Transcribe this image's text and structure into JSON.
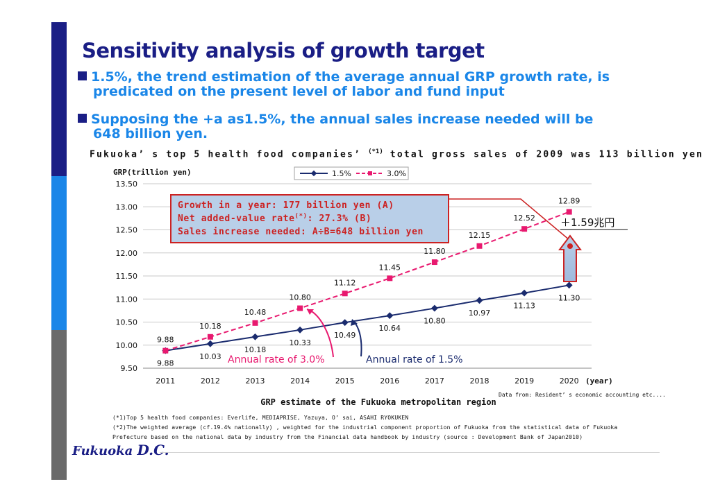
{
  "title": "Sensitivity analysis of growth target",
  "bullets": [
    {
      "line1": "1.5%, the trend estimation of the average annual GRP growth rate, is",
      "line2": "predicated on the present level of labor and fund input"
    },
    {
      "line1": "Supposing the +a as1.5%, the annual sales increase needed will be",
      "line2": "648 billion yen."
    }
  ],
  "subhead": {
    "text": "Fukuoka’ s top 5 health food companies’ ",
    "sup": "(*1)",
    "text2": " total gross sales of 2009 was 113 billion yen"
  },
  "annotation_box": {
    "line1": "Growth in a year: 177 billion yen (A)",
    "line2a": "Net added-value rate",
    "line2sup": "(*)",
    "line2b": ": 27.3% (B)",
    "line3": "Sales increase needed: A÷B=648 billion yen"
  },
  "increase_label": "＋1.59兆円",
  "rate_labels": {
    "pink": "Annual rate of 3.0%",
    "navy": "Annual rate of 1.5%"
  },
  "data_source": "Data from: Resident’ s economic accounting etc....",
  "footnotes": [
    "(*1)Top 5 health food companies: Everlife, MEDIAPRISE, Yazuya, O’ sai, ASAHI RYOKUKEN",
    "(*2)The weighted average (cf.19.4% nationally) , weighted for the industrial component proportion of Fukuoka from the statistical data of Fukuoka",
    "Prefecture based on the national data by industry from the Financial data handbook by industry (source : Development Bank of Japan2010)"
  ],
  "logo": {
    "main": "Fukuoka ",
    "dc": "D.C."
  },
  "colors": {
    "navy": "#1a2b6e",
    "pink": "#e8196f",
    "title": "#1a1e85",
    "bullet": "#1a86e8",
    "box_fill": "#b9cfe8",
    "box_border": "#cc2222"
  },
  "chart_data": {
    "type": "line",
    "title": "GRP estimate of the Fukuoka metropolitan region",
    "xlabel": "(year)",
    "ylabel": "GRP(trillion yen)",
    "categories": [
      "2011",
      "2012",
      "2013",
      "2014",
      "2015",
      "2016",
      "2017",
      "2018",
      "2019",
      "2020"
    ],
    "ylim": [
      9.5,
      13.5
    ],
    "yticks": [
      "9.50",
      "10.00",
      "10.50",
      "11.00",
      "11.50",
      "12.00",
      "12.50",
      "13.00",
      "13.50"
    ],
    "grid": true,
    "legend": "top",
    "series": [
      {
        "name": "1.5%",
        "color": "#1a2b6e",
        "style": "solid",
        "marker": "diamond",
        "values": [
          9.88,
          10.03,
          10.18,
          10.33,
          10.49,
          10.64,
          10.8,
          10.97,
          11.13,
          11.3
        ],
        "labels": [
          "9.88",
          "10.03",
          "10.18",
          "10.33",
          "10.49",
          "10.64",
          "10.80",
          "10.97",
          "11.13",
          "11.30"
        ]
      },
      {
        "name": "3.0%",
        "color": "#e8196f",
        "style": "dashed",
        "marker": "square",
        "values": [
          9.88,
          10.18,
          10.48,
          10.8,
          11.12,
          11.45,
          11.8,
          12.15,
          12.52,
          12.89
        ],
        "labels": [
          "9.88",
          "10.18",
          "10.48",
          "10.80",
          "11.12",
          "11.45",
          "11.80",
          "12.15",
          "12.52",
          "12.89"
        ]
      }
    ]
  }
}
